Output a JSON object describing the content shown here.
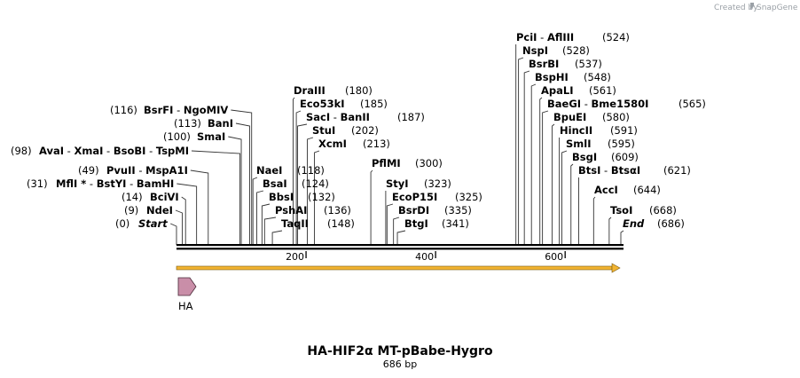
{
  "brand": {
    "created_by": "Created by",
    "name": "SnapGene"
  },
  "map": {
    "title": "HA-HIF2α MT-pBabe-Hygro",
    "length_label": "686 bp",
    "length": 686
  },
  "ruler": {
    "ticks": [
      200,
      400,
      600
    ]
  },
  "feature": {
    "label": "HA",
    "color": "#c98ea8"
  },
  "orf": {
    "color": "#f2b431"
  },
  "sites": [
    {
      "id": "start",
      "texts": [
        {
          "t": "(0)",
          "s": "n"
        },
        {
          "t": "Start",
          "s": "i"
        }
      ]
    },
    {
      "id": "ndei",
      "texts": [
        {
          "t": "(9)",
          "s": "n"
        },
        {
          "t": "NdeI",
          "s": "b"
        }
      ]
    },
    {
      "id": "bcivi",
      "texts": [
        {
          "t": "(14)",
          "s": "n"
        },
        {
          "t": "BciVI",
          "s": "b"
        }
      ]
    },
    {
      "id": "mfli",
      "texts": [
        {
          "t": "(31)",
          "s": "n"
        },
        {
          "t": "MflI *",
          "s": "b"
        },
        {
          "t": " - ",
          "s": "n"
        },
        {
          "t": "BstYI",
          "s": "b"
        },
        {
          "t": " - ",
          "s": "n"
        },
        {
          "t": "BamHI",
          "s": "b"
        }
      ]
    },
    {
      "id": "pvuii",
      "texts": [
        {
          "t": "(49)",
          "s": "n"
        },
        {
          "t": "PvuII",
          "s": "b"
        },
        {
          "t": " - ",
          "s": "n"
        },
        {
          "t": "MspA1I",
          "s": "b"
        }
      ]
    },
    {
      "id": "avai",
      "texts": [
        {
          "t": "(98)",
          "s": "n"
        },
        {
          "t": "AvaI",
          "s": "b"
        },
        {
          "t": " - ",
          "s": "n"
        },
        {
          "t": "XmaI",
          "s": "b"
        },
        {
          "t": " - ",
          "s": "n"
        },
        {
          "t": "BsoBI",
          "s": "b"
        },
        {
          "t": " - ",
          "s": "n"
        },
        {
          "t": "TspMI",
          "s": "b"
        }
      ]
    },
    {
      "id": "smai",
      "texts": [
        {
          "t": "(100)",
          "s": "n"
        },
        {
          "t": "SmaI",
          "s": "b"
        }
      ]
    },
    {
      "id": "bani",
      "texts": [
        {
          "t": "(113)",
          "s": "n"
        },
        {
          "t": "BanI",
          "s": "b"
        }
      ]
    },
    {
      "id": "bsrfi",
      "texts": [
        {
          "t": "(116)",
          "s": "n"
        },
        {
          "t": "BsrFI",
          "s": "b"
        },
        {
          "t": " - ",
          "s": "n"
        },
        {
          "t": "NgoMIV",
          "s": "b"
        }
      ]
    },
    {
      "id": "naei",
      "texts": [
        {
          "t": "NaeI",
          "s": "b"
        },
        {
          "t": "(118)",
          "s": "n"
        }
      ]
    },
    {
      "id": "bsai",
      "texts": [
        {
          "t": "BsaI",
          "s": "b"
        },
        {
          "t": "(124)",
          "s": "n"
        }
      ]
    },
    {
      "id": "bbsi",
      "texts": [
        {
          "t": "BbsI",
          "s": "b"
        },
        {
          "t": "(132)",
          "s": "n"
        }
      ]
    },
    {
      "id": "pshai",
      "texts": [
        {
          "t": "PshAI",
          "s": "b"
        },
        {
          "t": "(136)",
          "s": "n"
        }
      ]
    },
    {
      "id": "taqii",
      "texts": [
        {
          "t": "TaqII",
          "s": "b"
        },
        {
          "t": "(148)",
          "s": "n"
        }
      ]
    },
    {
      "id": "draiii",
      "texts": [
        {
          "t": "DraIII",
          "s": "b"
        },
        {
          "t": "(180)",
          "s": "n"
        }
      ]
    },
    {
      "id": "eco53ki",
      "texts": [
        {
          "t": "Eco53kI",
          "s": "b"
        },
        {
          "t": "(185)",
          "s": "n"
        }
      ]
    },
    {
      "id": "saci",
      "texts": [
        {
          "t": "SacI",
          "s": "b"
        },
        {
          "t": " - ",
          "s": "n"
        },
        {
          "t": "BanII",
          "s": "b"
        },
        {
          "t": "(187)",
          "s": "n"
        }
      ]
    },
    {
      "id": "stui",
      "texts": [
        {
          "t": "StuI",
          "s": "b"
        },
        {
          "t": "(202)",
          "s": "n"
        }
      ]
    },
    {
      "id": "xcmi",
      "texts": [
        {
          "t": "XcmI",
          "s": "b"
        },
        {
          "t": "(213)",
          "s": "n"
        }
      ]
    },
    {
      "id": "pflmi",
      "texts": [
        {
          "t": "PflMI",
          "s": "b"
        },
        {
          "t": "(300)",
          "s": "n"
        }
      ]
    },
    {
      "id": "styi",
      "texts": [
        {
          "t": "StyI",
          "s": "b"
        },
        {
          "t": "(323)",
          "s": "n"
        }
      ]
    },
    {
      "id": "ecop15i",
      "texts": [
        {
          "t": "EcoP15I",
          "s": "b"
        },
        {
          "t": "(325)",
          "s": "n"
        }
      ]
    },
    {
      "id": "bsrdi",
      "texts": [
        {
          "t": "BsrDI",
          "s": "b"
        },
        {
          "t": "(335)",
          "s": "n"
        }
      ]
    },
    {
      "id": "btgi",
      "texts": [
        {
          "t": "BtgI",
          "s": "b"
        },
        {
          "t": "(341)",
          "s": "n"
        }
      ]
    },
    {
      "id": "pcii",
      "texts": [
        {
          "t": "PciI",
          "s": "b"
        },
        {
          "t": " - ",
          "s": "n"
        },
        {
          "t": "AflIII",
          "s": "b"
        },
        {
          "t": "(524)",
          "s": "n"
        }
      ]
    },
    {
      "id": "nspi",
      "texts": [
        {
          "t": "NspI",
          "s": "b"
        },
        {
          "t": "(528)",
          "s": "n"
        }
      ]
    },
    {
      "id": "bsrbi",
      "texts": [
        {
          "t": "BsrBI",
          "s": "b"
        },
        {
          "t": "(537)",
          "s": "n"
        }
      ]
    },
    {
      "id": "bsphi",
      "texts": [
        {
          "t": "BspHI",
          "s": "b"
        },
        {
          "t": "(548)",
          "s": "n"
        }
      ]
    },
    {
      "id": "apali",
      "texts": [
        {
          "t": "ApaLI",
          "s": "b"
        },
        {
          "t": "(561)",
          "s": "n"
        }
      ]
    },
    {
      "id": "baegi",
      "texts": [
        {
          "t": "BaeGI",
          "s": "b"
        },
        {
          "t": " - ",
          "s": "n"
        },
        {
          "t": "Bme1580I",
          "s": "b"
        },
        {
          "t": "(565)",
          "s": "n"
        }
      ]
    },
    {
      "id": "bpuei",
      "texts": [
        {
          "t": "BpuEI",
          "s": "b"
        },
        {
          "t": "(580)",
          "s": "n"
        }
      ]
    },
    {
      "id": "hincii",
      "texts": [
        {
          "t": "HincII",
          "s": "b"
        },
        {
          "t": "(591)",
          "s": "n"
        }
      ]
    },
    {
      "id": "smli",
      "texts": [
        {
          "t": "SmlI",
          "s": "b"
        },
        {
          "t": "(595)",
          "s": "n"
        }
      ]
    },
    {
      "id": "bsgi",
      "texts": [
        {
          "t": "BsgI",
          "s": "b"
        },
        {
          "t": "(609)",
          "s": "n"
        }
      ]
    },
    {
      "id": "btsi",
      "texts": [
        {
          "t": "BtsI",
          "s": "b"
        },
        {
          "t": " - ",
          "s": "n"
        },
        {
          "t": "BtsαI",
          "s": "b"
        },
        {
          "t": "(621)",
          "s": "n"
        }
      ]
    },
    {
      "id": "acci",
      "texts": [
        {
          "t": "AccI",
          "s": "b"
        },
        {
          "t": "(644)",
          "s": "n"
        }
      ]
    },
    {
      "id": "tsoi",
      "texts": [
        {
          "t": "TsoI",
          "s": "b"
        },
        {
          "t": "(668)",
          "s": "n"
        }
      ]
    },
    {
      "id": "end",
      "texts": [
        {
          "t": "End",
          "s": "i"
        },
        {
          "t": "(686)",
          "s": "n"
        }
      ]
    }
  ]
}
